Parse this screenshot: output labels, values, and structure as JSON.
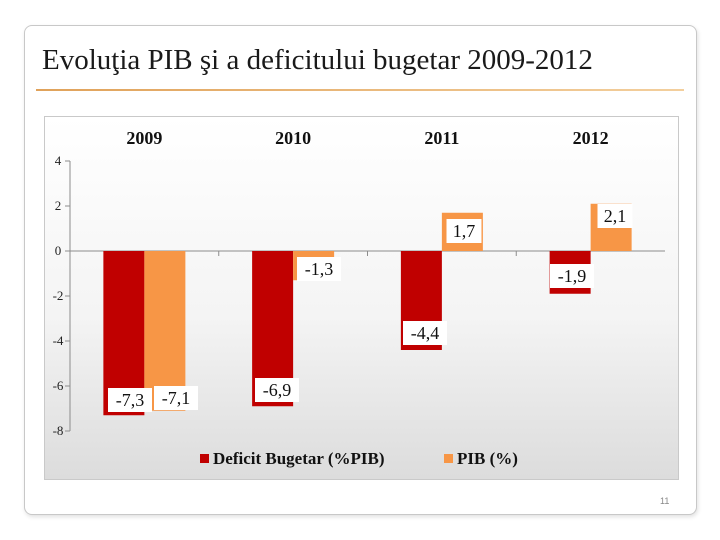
{
  "slide": {
    "title": "Evoluţia PIB şi a deficitului bugetar 2009-2012",
    "page_number": "11"
  },
  "chart_data": {
    "type": "bar",
    "categories": [
      "2009",
      "2010",
      "2011",
      "2012"
    ],
    "series": [
      {
        "name": "Deficit Bugetar (%PIB)",
        "values": [
          -7.3,
          -6.9,
          -4.4,
          -1.9
        ],
        "color": "#c00000",
        "labels": [
          "-7,3",
          "-6,9",
          "-4,4",
          "-1,9"
        ]
      },
      {
        "name": "PIB (%)",
        "values": [
          -7.1,
          -1.3,
          1.7,
          2.1
        ],
        "color": "#f79646",
        "labels": [
          "-7,1",
          "-1,3",
          "1,7",
          "2,1"
        ]
      }
    ],
    "ylim": [
      -8,
      4
    ],
    "yticks": [
      "4",
      "2",
      "0",
      "-2",
      "-4",
      "-6",
      "-8"
    ],
    "category_position": "top",
    "grid": false,
    "legend_position": "bottom"
  }
}
